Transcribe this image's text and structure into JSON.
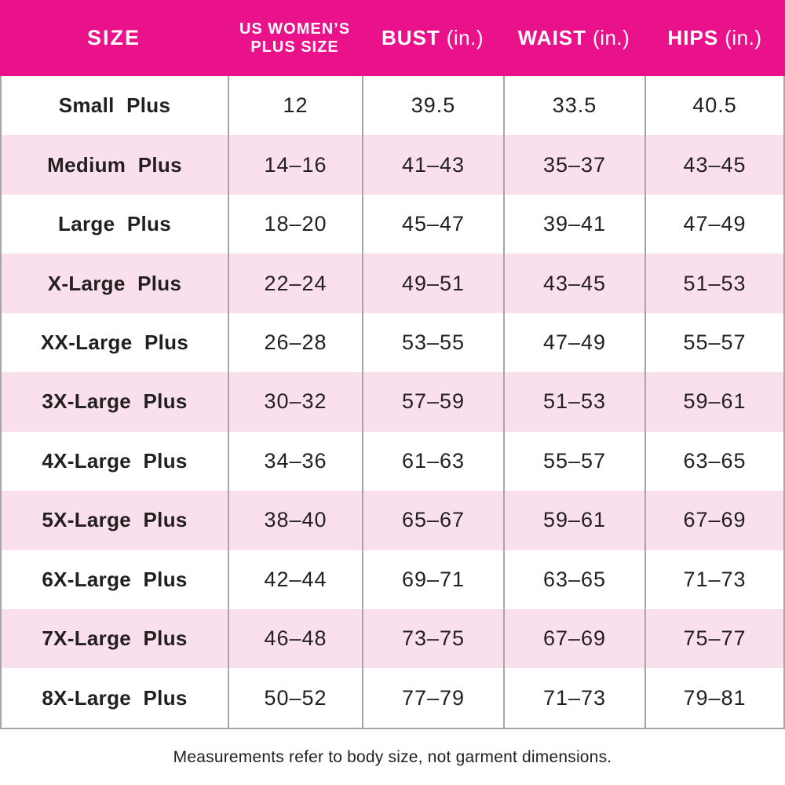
{
  "table": {
    "header": {
      "size_label": "SIZE",
      "us_plus_line1": "US WOMEN’S",
      "us_plus_line2": "PLUS SIZE",
      "bust_label": "BUST",
      "waist_label": "WAIST",
      "hips_label": "HIPS",
      "unit_label": "(in.)"
    }
  },
  "chart_data": {
    "type": "table",
    "columns": [
      "SIZE",
      "US WOMEN’S PLUS SIZE",
      "BUST (in.)",
      "WAIST (in.)",
      "HIPS (in.)"
    ],
    "rows": [
      [
        "Small Plus",
        "12",
        "39.5",
        "33.5",
        "40.5"
      ],
      [
        "Medium Plus",
        "14–16",
        "41–43",
        "35–37",
        "43–45"
      ],
      [
        "Large Plus",
        "18–20",
        "45–47",
        "39–41",
        "47–49"
      ],
      [
        "X-Large Plus",
        "22–24",
        "49–51",
        "43–45",
        "51–53"
      ],
      [
        "XX-Large Plus",
        "26–28",
        "53–55",
        "47–49",
        "55–57"
      ],
      [
        "3X-Large Plus",
        "30–32",
        "57–59",
        "51–53",
        "59–61"
      ],
      [
        "4X-Large Plus",
        "34–36",
        "61–63",
        "55–57",
        "63–65"
      ],
      [
        "5X-Large Plus",
        "38–40",
        "65–67",
        "59–61",
        "67–69"
      ],
      [
        "6X-Large Plus",
        "42–44",
        "69–71",
        "63–65",
        "71–73"
      ],
      [
        "7X-Large Plus",
        "46–48",
        "73–75",
        "67–69",
        "75–77"
      ],
      [
        "8X-Large Plus",
        "50–52",
        "77–79",
        "71–73",
        "79–81"
      ]
    ],
    "row_striping": [
      "white",
      "pink"
    ],
    "footnote": "Measurements refer to body size, not garment dimensions."
  },
  "footer": {
    "note": "Measurements refer to body size, not garment dimensions."
  },
  "colors": {
    "header_bg": "#EA128B",
    "header_text": "#FFFFFF",
    "row_pink": "#FADFEC",
    "row_white": "#FFFFFF",
    "grid_line": "#A6A6A6",
    "body_text": "#231F20"
  }
}
